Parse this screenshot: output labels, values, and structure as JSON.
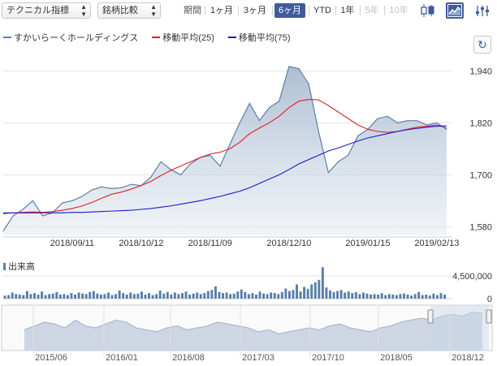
{
  "toolbar": {
    "indicator_select": "テクニカル指標",
    "compare_select": "銘柄比較",
    "period_label": "期間",
    "periods": [
      {
        "label": "1ヶ月",
        "state": "normal"
      },
      {
        "label": "3ヶ月",
        "state": "normal"
      },
      {
        "label": "6ヶ月",
        "state": "active"
      },
      {
        "label": "YTD",
        "state": "normal"
      },
      {
        "label": "1年",
        "state": "normal"
      },
      {
        "label": "5年",
        "state": "disabled"
      },
      {
        "label": "10年",
        "state": "disabled"
      }
    ],
    "icons": [
      "candlestick-icon",
      "area-chart-icon",
      "settings-icon"
    ]
  },
  "legend": [
    {
      "label": "すかいらーくホールディングス",
      "color": "#5a7fa8"
    },
    {
      "label": "移動平均(25)",
      "color": "#e02020"
    },
    {
      "label": "移動平均(75)",
      "color": "#1a1ad0"
    }
  ],
  "volume_label": "出来高",
  "chart_data": {
    "type": "area",
    "price": {
      "x": [
        "2018/08/14",
        "2018/08/17",
        "2018/08/22",
        "2018/08/27",
        "2018/08/30",
        "2018/09/04",
        "2018/09/07",
        "2018/09/11",
        "2018/09/14",
        "2018/09/19",
        "2018/09/25",
        "2018/09/28",
        "2018/10/03",
        "2018/10/09",
        "2018/10/12",
        "2018/10/17",
        "2018/10/22",
        "2018/10/25",
        "2018/10/30",
        "2018/11/02",
        "2018/11/07",
        "2018/11/09",
        "2018/11/13",
        "2018/11/16",
        "2018/11/21",
        "2018/11/27",
        "2018/11/30",
        "2018/12/04",
        "2018/12/07",
        "2018/12/10",
        "2018/12/13",
        "2018/12/18",
        "2018/12/21",
        "2018/12/26",
        "2018/12/28",
        "2019/01/08",
        "2019/01/11",
        "2019/01/15",
        "2019/01/18",
        "2019/01/23",
        "2019/01/28",
        "2019/01/31",
        "2019/02/05",
        "2019/02/08",
        "2019/02/13",
        "2019/02/15"
      ],
      "values": [
        1570,
        1605,
        1620,
        1640,
        1605,
        1612,
        1635,
        1640,
        1650,
        1665,
        1672,
        1668,
        1670,
        1678,
        1675,
        1695,
        1730,
        1712,
        1700,
        1725,
        1740,
        1745,
        1720,
        1770,
        1820,
        1865,
        1825,
        1855,
        1870,
        1950,
        1945,
        1910,
        1800,
        1705,
        1730,
        1745,
        1790,
        1805,
        1830,
        1835,
        1820,
        1825,
        1825,
        1815,
        1820,
        1805
      ],
      "ylim": [
        1560,
        1980
      ],
      "yticks": [
        "1,580",
        "1,700",
        "1,820",
        "1,940"
      ],
      "ytick_values": [
        1580,
        1700,
        1820,
        1940
      ]
    },
    "ma25": {
      "values": [
        1610,
        1612,
        1613,
        1614,
        1613,
        1615,
        1618,
        1622,
        1628,
        1636,
        1646,
        1655,
        1660,
        1667,
        1675,
        1685,
        1698,
        1710,
        1720,
        1730,
        1740,
        1748,
        1752,
        1760,
        1775,
        1795,
        1808,
        1820,
        1835,
        1855,
        1870,
        1874,
        1873,
        1860,
        1845,
        1830,
        1815,
        1805,
        1800,
        1798,
        1800,
        1805,
        1810,
        1812,
        1815,
        1808
      ]
    },
    "ma75": {
      "values": [
        1612,
        1612,
        1612,
        1612,
        1612,
        1612,
        1612,
        1613,
        1613,
        1614,
        1615,
        1616,
        1617,
        1618,
        1620,
        1622,
        1625,
        1628,
        1632,
        1636,
        1640,
        1645,
        1650,
        1656,
        1662,
        1670,
        1680,
        1690,
        1700,
        1712,
        1725,
        1735,
        1745,
        1755,
        1762,
        1770,
        1778,
        1785,
        1790,
        1795,
        1800,
        1804,
        1807,
        1810,
        1812,
        1813
      ]
    },
    "xticks": [
      "2018/09/11",
      "2018/10/12",
      "2018/11/09",
      "2018/12/10",
      "2019/01/15",
      "2019/02/13"
    ],
    "volume": {
      "yticks": [
        "4,500,000",
        "0"
      ],
      "ytick_values": [
        4500000,
        0
      ],
      "ylim": [
        0,
        8000000
      ],
      "values": [
        600000,
        700000,
        1200000,
        900000,
        800000,
        700000,
        1500000,
        900000,
        1100000,
        800000,
        1400000,
        700000,
        900000,
        1000000,
        1300000,
        800000,
        900000,
        700000,
        1100000,
        800000,
        1200000,
        1000000,
        900000,
        1300000,
        1500000,
        1000000,
        800000,
        900000,
        1200000,
        700000,
        900000,
        1600000,
        1100000,
        800000,
        1200000,
        900000,
        1000000,
        1400000,
        800000,
        1100000,
        700000,
        900000,
        1600000,
        1000000,
        1300000,
        800000,
        1200000,
        900000,
        1100000,
        1400000,
        800000,
        1000000,
        1200000,
        900000,
        1100000,
        1500000,
        1700000,
        2400000,
        1300000,
        1100000,
        1200000,
        900000,
        1000000,
        1400000,
        1800000,
        1300000,
        900000,
        1100000,
        800000,
        1400000,
        1000000,
        900000,
        1200000,
        1100000,
        900000,
        1300000,
        2000000,
        1500000,
        1700000,
        2800000,
        1400000,
        2300000,
        1900000,
        2800000,
        3200000,
        3700000,
        6200000,
        2200000,
        1600000,
        1300000,
        1500000,
        1700000,
        1200000,
        1400000,
        1100000,
        1300000,
        900000,
        1200000,
        1000000,
        800000,
        900000,
        800000,
        1100000,
        700000,
        900000,
        800000,
        700000,
        900000,
        1000000,
        800000,
        600000,
        900000,
        1300000,
        700000,
        800000,
        600000,
        1000000,
        700000,
        1100000,
        800000
      ]
    },
    "navigator": {
      "xticks": [
        "2015/06",
        "2016/01",
        "2016/08",
        "2017/03",
        "2017/10",
        "2018/05",
        "2018/12"
      ]
    }
  }
}
